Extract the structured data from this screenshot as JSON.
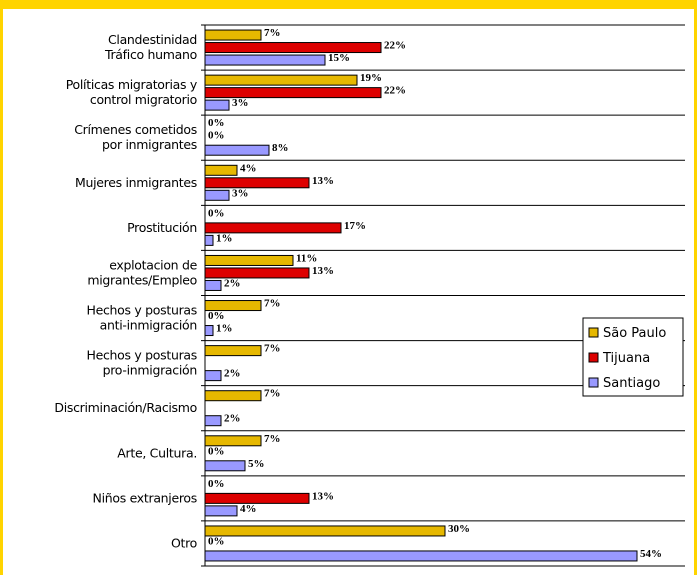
{
  "chart_data": {
    "type": "bar",
    "orientation": "horizontal",
    "categories": [
      "Clandestinidad\nTráfico humano",
      "Políticas migratorias y\ncontrol migratorio",
      "Crímenes cometidos\npor inmigrantes",
      "Mujeres inmigrantes",
      "Prostitución",
      "explotacion de\nmigrantes/Empleo",
      "Hechos y posturas\nanti-inmigración",
      "Hechos y posturas\npro-inmigración",
      "Discriminación/Racismo",
      "Arte, Cultura.",
      "Niños extranjeros",
      "Otro"
    ],
    "series": [
      {
        "name": "São Paulo",
        "color": "#e6b800",
        "values": [
          7,
          19,
          0,
          4,
          0,
          11,
          7,
          7,
          7,
          7,
          0,
          30
        ],
        "value_labels": [
          "7%",
          "19%",
          "0%",
          "4%",
          "0%",
          "11%",
          "7%",
          "7%",
          "7%",
          "7%",
          "0%",
          "30%"
        ]
      },
      {
        "name": "Tijuana",
        "color": "#dd0000",
        "values": [
          22,
          22,
          0,
          13,
          17,
          13,
          0,
          null,
          null,
          0,
          13,
          0
        ],
        "value_labels": [
          "22%",
          "22%",
          "0%",
          "13%",
          "17%",
          "13%",
          "0%",
          null,
          null,
          "0%",
          "13%",
          "0%"
        ]
      },
      {
        "name": "Santiago",
        "color": "#9999ff",
        "values": [
          15,
          3,
          8,
          3,
          1,
          2,
          1,
          2,
          2,
          5,
          4,
          54
        ],
        "value_labels": [
          "15%",
          "3%",
          "8%",
          "3%",
          "1%",
          "2%",
          "1%",
          "2%",
          "2%",
          "5%",
          "4%",
          "54%"
        ]
      }
    ],
    "xlim": [
      0,
      60
    ],
    "legend": "right"
  }
}
